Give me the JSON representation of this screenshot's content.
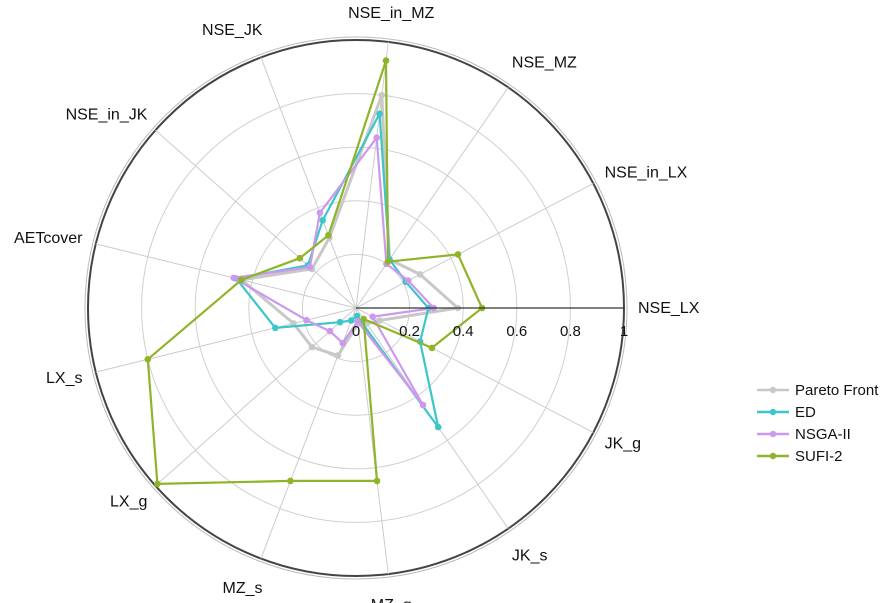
{
  "chart_data": {
    "type": "radar",
    "title": "",
    "axes": [
      "NSE_LX",
      "NSE_in_LX",
      "NSE_MZ",
      "NSE_in_MZ",
      "NSE_JK",
      "NSE_in_JK",
      "AETcover",
      "LX_s",
      "LX_g",
      "MZ_s",
      "MZ_g",
      "JK_s",
      "JK_g"
    ],
    "radial_range": [
      0,
      1
    ],
    "radial_ticks": [
      "0",
      "0.2",
      "0.4",
      "0.6",
      "0.8",
      "1"
    ],
    "grid": true,
    "legend_position": "right",
    "series": [
      {
        "name": "Pareto Front",
        "color": "#c8c8c8",
        "values": [
          0.38,
          0.27,
          0.22,
          0.8,
          0.28,
          0.22,
          0.44,
          0.24,
          0.22,
          0.19,
          0.06,
          0.07,
          0.1
        ]
      },
      {
        "name": "ED",
        "color": "#3cc6c8",
        "values": [
          0.27,
          0.21,
          0.22,
          0.73,
          0.35,
          0.24,
          0.46,
          0.31,
          0.08,
          0.05,
          0.03,
          0.54,
          0.27
        ]
      },
      {
        "name": "NSGA-II",
        "color": "#cc99ee",
        "values": [
          0.29,
          0.22,
          0.2,
          0.64,
          0.38,
          0.23,
          0.47,
          0.19,
          0.13,
          0.14,
          0.05,
          0.44,
          0.07
        ]
      },
      {
        "name": "SUFI-2",
        "color": "#8fb42a",
        "values": [
          0.47,
          0.43,
          0.21,
          0.93,
          0.29,
          0.28,
          0.44,
          0.8,
          0.99,
          0.69,
          0.65,
          0.05,
          0.32
        ]
      }
    ]
  }
}
